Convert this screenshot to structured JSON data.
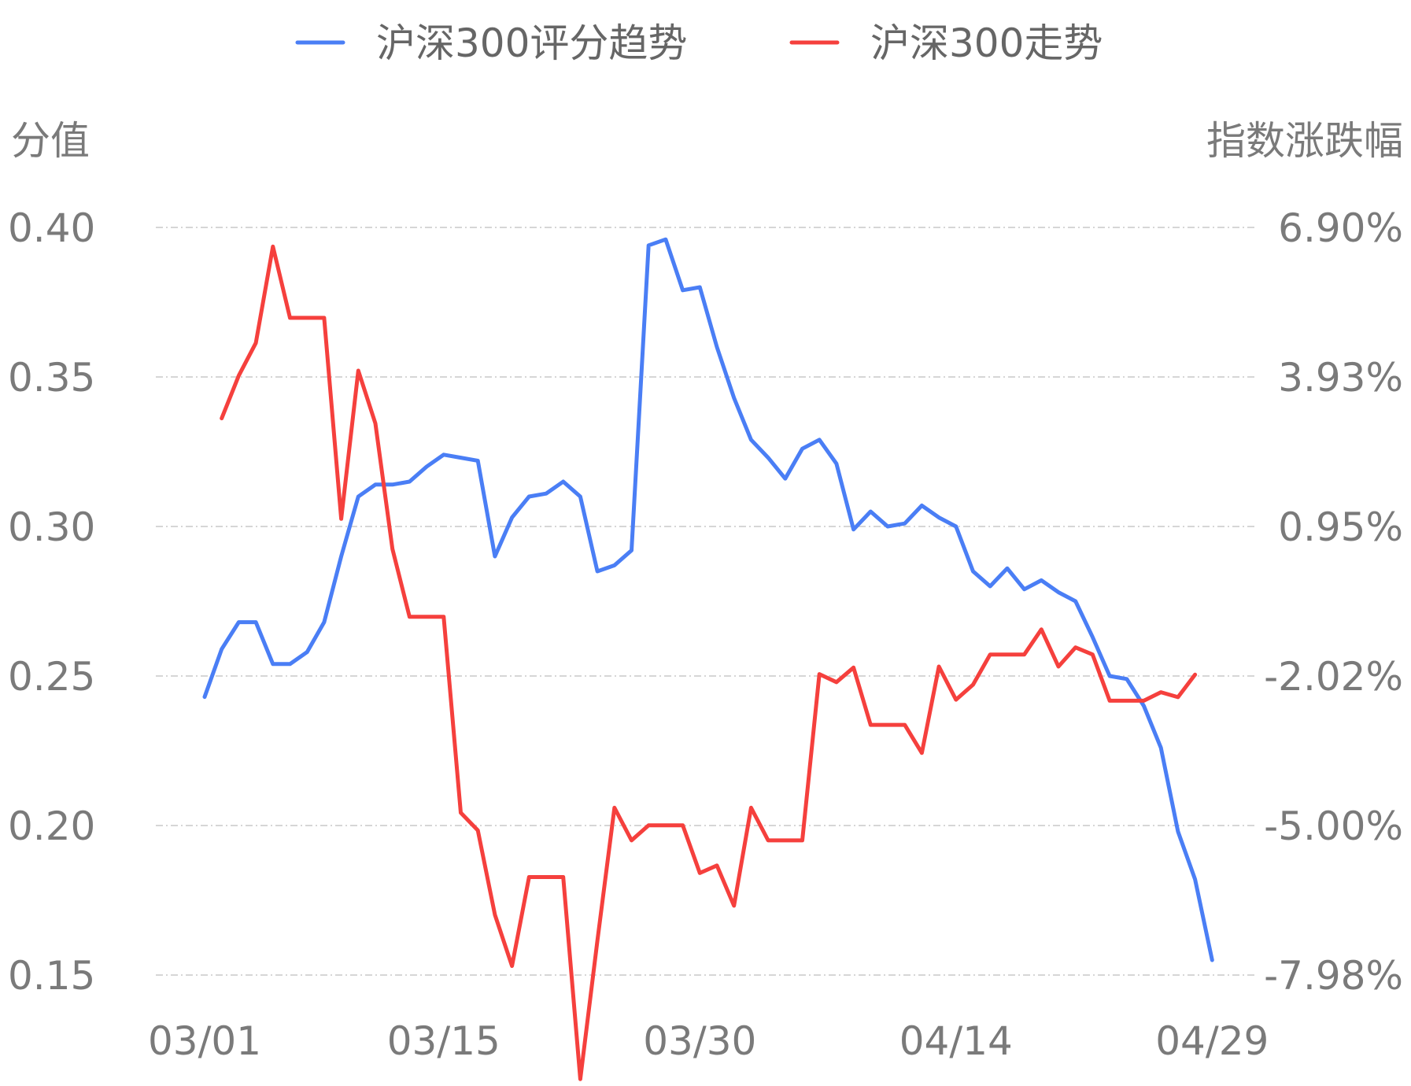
{
  "chart_data": {
    "type": "line",
    "legend_position": "top-center",
    "grid": true,
    "yaxis_left": {
      "title": "分值",
      "ticks": [
        "0.40",
        "0.35",
        "0.30",
        "0.25",
        "0.20",
        "0.15"
      ],
      "range": [
        0.15,
        0.4
      ]
    },
    "yaxis_right": {
      "title": "指数涨跌幅",
      "ticks": [
        "6.90%",
        "3.93%",
        "0.95%",
        "-2.02%",
        "-5.00%",
        "-7.98%"
      ],
      "range": [
        -7.98,
        6.9
      ]
    },
    "xaxis": {
      "ticks": [
        "03/01",
        "03/15",
        "03/30",
        "04/14",
        "04/29"
      ],
      "tick_indices": [
        0,
        14,
        29,
        44,
        59
      ]
    },
    "x": [
      "03/01",
      "03/02",
      "03/03",
      "03/04",
      "03/05",
      "03/06",
      "03/07",
      "03/08",
      "03/09",
      "03/10",
      "03/11",
      "03/12",
      "03/13",
      "03/14",
      "03/15",
      "03/16",
      "03/17",
      "03/18",
      "03/19",
      "03/20",
      "03/21",
      "03/22",
      "03/23",
      "03/24",
      "03/25",
      "03/26",
      "03/27",
      "03/28",
      "03/29",
      "03/30",
      "03/31",
      "04/01",
      "04/02",
      "04/03",
      "04/04",
      "04/05",
      "04/06",
      "04/07",
      "04/08",
      "04/09",
      "04/10",
      "04/11",
      "04/12",
      "04/13",
      "04/14",
      "04/15",
      "04/16",
      "04/17",
      "04/18",
      "04/19",
      "04/20",
      "04/21",
      "04/22",
      "04/23",
      "04/24",
      "04/25",
      "04/26",
      "04/27",
      "04/28",
      "04/29"
    ],
    "series": [
      {
        "name": "沪深300评分趋势",
        "color": "#4a7ef5",
        "axis": "left",
        "values": [
          0.243,
          0.259,
          0.268,
          0.268,
          0.254,
          0.254,
          0.258,
          0.268,
          0.29,
          0.31,
          0.314,
          0.314,
          0.315,
          0.32,
          0.324,
          0.323,
          0.322,
          0.29,
          0.303,
          0.31,
          0.311,
          0.315,
          0.31,
          0.285,
          0.287,
          0.292,
          0.394,
          0.396,
          0.379,
          0.38,
          0.36,
          0.343,
          0.329,
          0.323,
          0.316,
          0.326,
          0.329,
          0.321,
          0.299,
          0.305,
          0.3,
          0.301,
          0.307,
          0.303,
          0.3,
          0.285,
          0.28,
          0.286,
          0.279,
          0.282,
          0.278,
          0.275,
          0.263,
          0.25,
          0.249,
          0.24,
          0.226,
          0.198,
          0.182,
          0.155
        ]
      },
      {
        "name": "沪深300走势",
        "color": "#f5403d",
        "axis": "right",
        "values": [
          null,
          3.1,
          3.95,
          4.6,
          6.52,
          5.1,
          5.1,
          5.1,
          1.1,
          4.05,
          3.0,
          0.5,
          -0.85,
          -0.85,
          -0.85,
          -4.75,
          -5.1,
          -6.78,
          -7.8,
          -6.03,
          -6.03,
          -6.03,
          -10.05,
          -7.3,
          -4.65,
          -5.3,
          -5.0,
          -5.0,
          -5.0,
          -5.95,
          -5.8,
          -6.6,
          -4.65,
          -5.3,
          -5.3,
          -5.3,
          -1.99,
          -2.15,
          -1.86,
          -3.0,
          -3.0,
          -3.0,
          -3.56,
          -1.84,
          -2.5,
          -2.2,
          -1.6,
          -1.6,
          -1.6,
          -1.1,
          -1.84,
          -1.46,
          -1.6,
          -2.52,
          -2.52,
          -2.52,
          -2.35,
          -2.45,
          -2.0,
          null
        ]
      }
    ]
  }
}
